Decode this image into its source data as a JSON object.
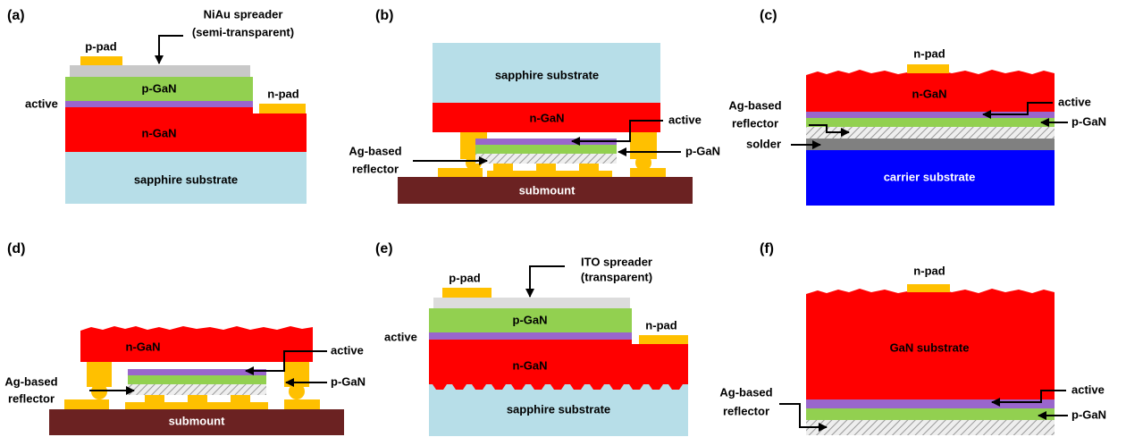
{
  "panels": {
    "a": {
      "label": "(a)",
      "p_pad": "p-pad",
      "spreader_1": "NiAu spreader",
      "spreader_2": "(semi-transparent)",
      "p_gan": "p-GaN",
      "active": "active",
      "n_pad": "n-pad",
      "n_gan": "n-GaN",
      "substrate": "sapphire substrate"
    },
    "b": {
      "label": "(b)",
      "substrate": "sapphire substrate",
      "n_gan": "n-GaN",
      "active": "active",
      "p_gan": "p-GaN",
      "reflector_1": "Ag-based",
      "reflector_2": "reflector",
      "submount": "submount"
    },
    "c": {
      "label": "(c)",
      "n_pad": "n-pad",
      "n_gan": "n-GaN",
      "active": "active",
      "p_gan": "p-GaN",
      "reflector_1": "Ag-based",
      "reflector_2": "reflector",
      "solder": "solder",
      "substrate": "carrier substrate"
    },
    "d": {
      "label": "(d)",
      "n_gan": "n-GaN",
      "active": "active",
      "p_gan": "p-GaN",
      "reflector_1": "Ag-based",
      "reflector_2": "reflector",
      "submount": "submount"
    },
    "e": {
      "label": "(e)",
      "p_pad": "p-pad",
      "spreader_1": "ITO spreader",
      "spreader_2": "(transparent)",
      "p_gan": "p-GaN",
      "active": "active",
      "n_pad": "n-pad",
      "n_gan": "n-GaN",
      "substrate": "sapphire substrate"
    },
    "f": {
      "label": "(f)",
      "n_pad": "n-pad",
      "substrate": "GaN substrate",
      "active": "active",
      "p_gan": "p-GaN",
      "reflector_1": "Ag-based",
      "reflector_2": "reflector"
    }
  }
}
